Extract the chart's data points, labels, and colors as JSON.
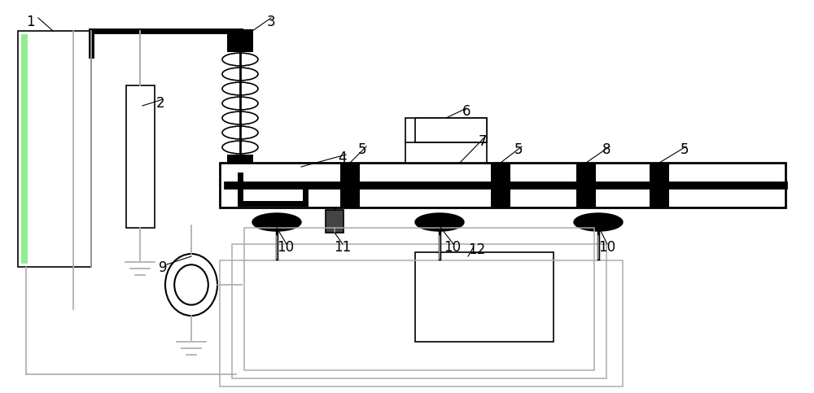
{
  "bg_color": "#ffffff",
  "line_color": "#000000",
  "thick_lw": 5,
  "thin_lw": 1.2,
  "medium_lw": 2.0,
  "gray_color": "#aaaaaa",
  "green_color": "#90ee90"
}
